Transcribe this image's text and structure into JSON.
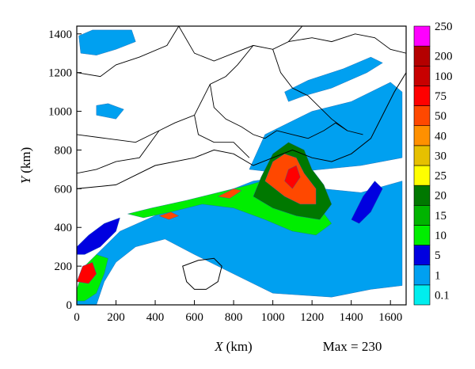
{
  "chart_data": {
    "type": "heatmap",
    "title": "",
    "xlabel": {
      "symbol": "X",
      "unit": "(km)"
    },
    "ylabel": {
      "symbol": "Y",
      "unit": "(km)"
    },
    "xlim": [
      0,
      1680
    ],
    "ylim": [
      0,
      1440
    ],
    "xticks": [
      0,
      200,
      400,
      600,
      800,
      1000,
      1200,
      1400,
      1600
    ],
    "yticks": [
      0,
      200,
      400,
      600,
      800,
      1000,
      1200,
      1400
    ],
    "annotation": "Max = 230",
    "colorbar": {
      "levels": [
        "0.1",
        "1",
        "5",
        "10",
        "15",
        "20",
        "25",
        "30",
        "40",
        "50",
        "75",
        "100",
        "200",
        "250"
      ],
      "colors": [
        "#00eeee",
        "#00a0f0",
        "#0000e0",
        "#00ee00",
        "#00b400",
        "#007800",
        "#ffff00",
        "#e6c000",
        "#ff9000",
        "#ff4800",
        "#ff0000",
        "#c80000",
        "#b40000",
        "#ff00ff"
      ]
    },
    "rain_regions": [
      {
        "name": "main rainband",
        "level": 1,
        "poly": [
          [
            0,
            80
          ],
          [
            100,
            260
          ],
          [
            220,
            380
          ],
          [
            420,
            470
          ],
          [
            700,
            560
          ],
          [
            900,
            640
          ],
          [
            1050,
            660
          ],
          [
            1250,
            600
          ],
          [
            1450,
            580
          ],
          [
            1660,
            640
          ],
          [
            1660,
            100
          ],
          [
            1500,
            80
          ],
          [
            1300,
            40
          ],
          [
            1000,
            60
          ],
          [
            800,
            160
          ],
          [
            600,
            260
          ],
          [
            450,
            340
          ],
          [
            300,
            300
          ],
          [
            200,
            220
          ],
          [
            140,
            120
          ],
          [
            100,
            0
          ],
          [
            0,
            0
          ]
        ]
      },
      {
        "name": "north-east band",
        "level": 1,
        "poly": [
          [
            880,
            700
          ],
          [
            960,
            880
          ],
          [
            1040,
            920
          ],
          [
            1200,
            1000
          ],
          [
            1400,
            1050
          ],
          [
            1600,
            1150
          ],
          [
            1660,
            1100
          ],
          [
            1660,
            760
          ],
          [
            1450,
            720
          ],
          [
            1250,
            700
          ],
          [
            1050,
            680
          ]
        ]
      },
      {
        "name": "northern strip",
        "level": 1,
        "poly": [
          [
            1080,
            1050
          ],
          [
            1160,
            1080
          ],
          [
            1300,
            1120
          ],
          [
            1480,
            1200
          ],
          [
            1560,
            1250
          ],
          [
            1500,
            1280
          ],
          [
            1360,
            1220
          ],
          [
            1180,
            1160
          ],
          [
            1060,
            1100
          ]
        ]
      },
      {
        "name": "north-west patch",
        "level": 1,
        "poly": [
          [
            20,
            1300
          ],
          [
            100,
            1290
          ],
          [
            200,
            1320
          ],
          [
            300,
            1360
          ],
          [
            280,
            1420
          ],
          [
            80,
            1420
          ],
          [
            10,
            1390
          ]
        ]
      },
      {
        "name": "west-central patch",
        "level": 1,
        "poly": [
          [
            100,
            980
          ],
          [
            200,
            960
          ],
          [
            240,
            1010
          ],
          [
            160,
            1040
          ],
          [
            100,
            1030
          ]
        ]
      },
      {
        "name": "western mid patch",
        "level": 2,
        "poly": [
          [
            0,
            300
          ],
          [
            60,
            360
          ],
          [
            140,
            420
          ],
          [
            220,
            450
          ],
          [
            200,
            380
          ],
          [
            120,
            300
          ],
          [
            40,
            260
          ],
          [
            0,
            260
          ]
        ]
      },
      {
        "name": "rainband core",
        "level": 3,
        "poly": [
          [
            260,
            470
          ],
          [
            380,
            500
          ],
          [
            560,
            540
          ],
          [
            720,
            580
          ],
          [
            880,
            620
          ],
          [
            980,
            650
          ],
          [
            1060,
            620
          ],
          [
            1140,
            560
          ],
          [
            1240,
            500
          ],
          [
            1300,
            420
          ],
          [
            1220,
            360
          ],
          [
            1100,
            380
          ],
          [
            960,
            440
          ],
          [
            800,
            500
          ],
          [
            640,
            520
          ],
          [
            480,
            480
          ],
          [
            340,
            450
          ]
        ]
      },
      {
        "name": "typhoon core",
        "level": 5,
        "poly": [
          [
            900,
            560
          ],
          [
            940,
            660
          ],
          [
            1000,
            780
          ],
          [
            1080,
            840
          ],
          [
            1160,
            800
          ],
          [
            1200,
            700
          ],
          [
            1260,
            620
          ],
          [
            1300,
            520
          ],
          [
            1240,
            440
          ],
          [
            1120,
            460
          ],
          [
            1000,
            500
          ]
        ]
      },
      {
        "name": "typhoon centre",
        "level": 9,
        "poly": [
          [
            960,
            640
          ],
          [
            1000,
            740
          ],
          [
            1060,
            780
          ],
          [
            1120,
            760
          ],
          [
            1160,
            680
          ],
          [
            1220,
            600
          ],
          [
            1220,
            520
          ],
          [
            1140,
            520
          ],
          [
            1060,
            560
          ]
        ]
      },
      {
        "name": "typhoon peak",
        "level": 10,
        "poly": [
          [
            1060,
            640
          ],
          [
            1080,
            700
          ],
          [
            1120,
            720
          ],
          [
            1140,
            660
          ],
          [
            1100,
            600
          ]
        ]
      },
      {
        "name": "south-west core",
        "level": 3,
        "poly": [
          [
            0,
            80
          ],
          [
            40,
            200
          ],
          [
            100,
            260
          ],
          [
            160,
            240
          ],
          [
            140,
            160
          ],
          [
            100,
            60
          ],
          [
            40,
            20
          ],
          [
            0,
            20
          ]
        ]
      },
      {
        "name": "south-west peak",
        "level": 10,
        "poly": [
          [
            0,
            120
          ],
          [
            30,
            200
          ],
          [
            80,
            220
          ],
          [
            100,
            160
          ],
          [
            60,
            110
          ]
        ]
      },
      {
        "name": "east strip",
        "level": 2,
        "poly": [
          [
            1400,
            440
          ],
          [
            1460,
            560
          ],
          [
            1520,
            640
          ],
          [
            1560,
            600
          ],
          [
            1500,
            480
          ],
          [
            1440,
            420
          ]
        ]
      },
      {
        "name": "band cell west",
        "level": 9,
        "poly": [
          [
            420,
            460
          ],
          [
            480,
            480
          ],
          [
            520,
            460
          ],
          [
            470,
            440
          ]
        ]
      },
      {
        "name": "band cell mid",
        "level": 9,
        "poly": [
          [
            720,
            560
          ],
          [
            800,
            600
          ],
          [
            840,
            590
          ],
          [
            780,
            550
          ]
        ]
      }
    ],
    "land_boundary": [
      [
        0,
        600
      ],
      [
        200,
        620
      ],
      [
        400,
        720
      ],
      [
        600,
        760
      ],
      [
        700,
        800
      ],
      [
        800,
        780
      ],
      [
        900,
        720
      ],
      [
        1000,
        760
      ],
      [
        1100,
        800
      ],
      [
        1200,
        760
      ],
      [
        1300,
        740
      ],
      [
        1400,
        780
      ],
      [
        1500,
        860
      ],
      [
        1560,
        980
      ],
      [
        1620,
        1100
      ],
      [
        1680,
        1200
      ],
      [
        1680,
        1440
      ],
      [
        0,
        1440
      ]
    ],
    "province_boundaries": [
      [
        [
          0,
          1200
        ],
        [
          120,
          1180
        ],
        [
          200,
          1240
        ],
        [
          320,
          1280
        ],
        [
          460,
          1340
        ],
        [
          520,
          1440
        ]
      ],
      [
        [
          520,
          1440
        ],
        [
          600,
          1300
        ],
        [
          700,
          1260
        ],
        [
          800,
          1300
        ],
        [
          900,
          1340
        ],
        [
          1000,
          1320
        ],
        [
          1080,
          1360
        ],
        [
          1150,
          1440
        ]
      ],
      [
        [
          0,
          880
        ],
        [
          150,
          860
        ],
        [
          300,
          840
        ],
        [
          420,
          900
        ],
        [
          500,
          940
        ],
        [
          600,
          980
        ],
        [
          640,
          1060
        ],
        [
          680,
          1140
        ],
        [
          760,
          1180
        ],
        [
          820,
          1240
        ],
        [
          900,
          1340
        ]
      ],
      [
        [
          680,
          1140
        ],
        [
          700,
          1020
        ],
        [
          760,
          960
        ],
        [
          840,
          920
        ],
        [
          900,
          880
        ],
        [
          960,
          860
        ]
      ],
      [
        [
          0,
          680
        ],
        [
          100,
          700
        ],
        [
          200,
          740
        ],
        [
          320,
          760
        ],
        [
          420,
          900
        ]
      ],
      [
        [
          600,
          980
        ],
        [
          620,
          880
        ],
        [
          700,
          840
        ],
        [
          800,
          840
        ],
        [
          880,
          760
        ]
      ],
      [
        [
          1000,
          1320
        ],
        [
          1040,
          1200
        ],
        [
          1100,
          1120
        ],
        [
          1180,
          1080
        ],
        [
          1240,
          1020
        ],
        [
          1300,
          960
        ],
        [
          1380,
          900
        ],
        [
          1460,
          880
        ]
      ],
      [
        [
          1080,
          1360
        ],
        [
          1200,
          1380
        ],
        [
          1300,
          1360
        ],
        [
          1420,
          1400
        ],
        [
          1520,
          1380
        ],
        [
          1600,
          1320
        ],
        [
          1680,
          1300
        ]
      ],
      [
        [
          960,
          860
        ],
        [
          1020,
          900
        ],
        [
          1100,
          880
        ],
        [
          1180,
          860
        ],
        [
          1260,
          900
        ],
        [
          1320,
          940
        ],
        [
          1380,
          900
        ]
      ]
    ],
    "island_boundary": [
      [
        540,
        200
      ],
      [
        620,
        230
      ],
      [
        700,
        240
      ],
      [
        740,
        200
      ],
      [
        720,
        120
      ],
      [
        660,
        80
      ],
      [
        600,
        80
      ],
      [
        560,
        120
      ]
    ]
  }
}
